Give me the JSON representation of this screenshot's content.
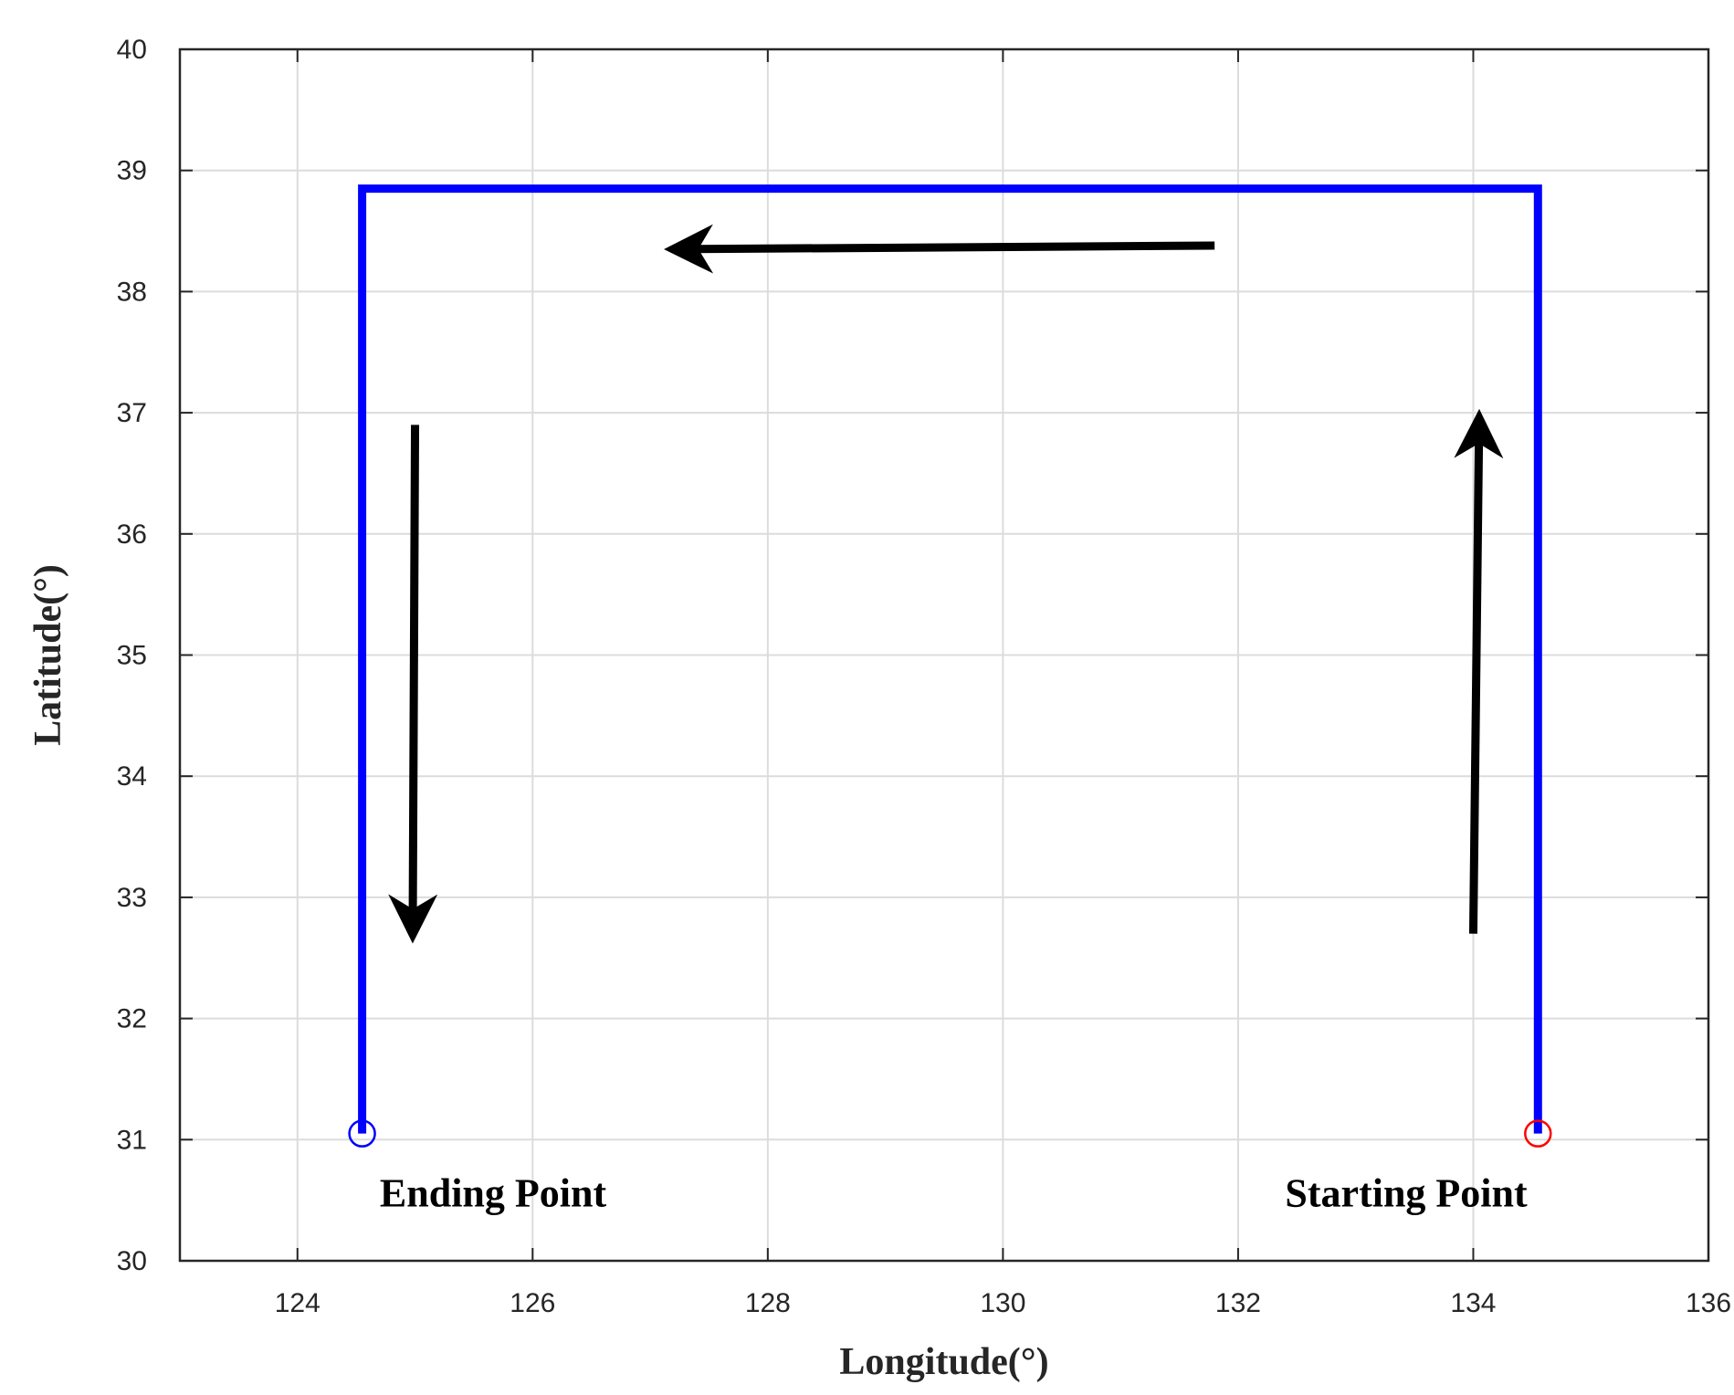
{
  "chart_data": {
    "type": "line",
    "xlabel": "Longitude(°)",
    "ylabel": "Latitude(°)",
    "xlim": [
      123,
      136
    ],
    "ylim": [
      30,
      40
    ],
    "xticks": [
      124,
      126,
      128,
      130,
      132,
      134,
      136
    ],
    "yticks": [
      30,
      31,
      32,
      33,
      34,
      35,
      36,
      37,
      38,
      39,
      40
    ],
    "xtick_labels": [
      "124",
      "126",
      "128",
      "130",
      "132",
      "134",
      "136"
    ],
    "ytick_labels": [
      "30",
      "31",
      "32",
      "33",
      "34",
      "35",
      "36",
      "37",
      "38",
      "39",
      "40"
    ],
    "grid": true,
    "box": true,
    "series": [
      {
        "color": "#0000ff",
        "points": [
          [
            134.55,
            31.05
          ],
          [
            134.55,
            38.85
          ],
          [
            124.55,
            38.85
          ],
          [
            124.55,
            31.05
          ]
        ]
      }
    ],
    "markers": [
      {
        "label": "start",
        "x": 134.55,
        "y": 31.05,
        "shape": "circle-open",
        "color": "#ff0000"
      },
      {
        "label": "end",
        "x": 124.55,
        "y": 31.05,
        "shape": "circle-open",
        "color": "#0000ff"
      }
    ],
    "arrows": [
      {
        "direction": "up",
        "color": "#000000",
        "from": [
          134.0,
          32.7
        ],
        "to": [
          134.05,
          36.95
        ]
      },
      {
        "direction": "left",
        "color": "#000000",
        "from": [
          131.8,
          38.38
        ],
        "to": [
          127.2,
          38.35
        ]
      },
      {
        "direction": "down",
        "color": "#000000",
        "from": [
          125.0,
          36.9
        ],
        "to": [
          124.98,
          32.7
        ]
      }
    ],
    "annotations": [
      {
        "text": "Ending Point",
        "x": 124.7,
        "y": 30.45
      },
      {
        "text": "Starting Point",
        "x": 132.4,
        "y": 30.45
      }
    ]
  }
}
